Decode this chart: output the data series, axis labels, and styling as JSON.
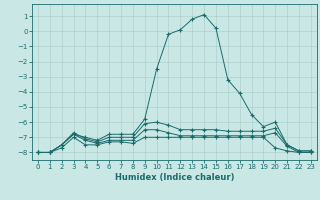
{
  "xlabel": "Humidex (Indice chaleur)",
  "ylabel": "",
  "background_color": "#c9e8e5",
  "grid_color": "#aed0cc",
  "line_color": "#1a6b6b",
  "xlim": [
    -0.5,
    23.5
  ],
  "ylim": [
    -8.5,
    1.8
  ],
  "yticks": [
    1,
    0,
    -1,
    -2,
    -3,
    -4,
    -5,
    -6,
    -7,
    -8
  ],
  "xticks": [
    0,
    1,
    2,
    3,
    4,
    5,
    6,
    7,
    8,
    9,
    10,
    11,
    12,
    13,
    14,
    15,
    16,
    17,
    18,
    19,
    20,
    21,
    22,
    23
  ],
  "curve1_x": [
    0,
    1,
    2,
    3,
    4,
    5,
    6,
    7,
    8,
    9,
    10,
    11,
    12,
    13,
    14,
    15,
    16,
    17,
    18,
    19,
    20,
    21,
    22,
    23
  ],
  "curve1_y": [
    -8.0,
    -8.0,
    -7.5,
    -6.8,
    -7.0,
    -7.2,
    -6.8,
    -6.8,
    -6.8,
    -5.8,
    -2.5,
    -0.2,
    0.1,
    0.8,
    1.1,
    0.2,
    -3.2,
    -4.1,
    -5.5,
    -6.3,
    -6.0,
    -7.5,
    -7.9,
    -7.9
  ],
  "curve2_x": [
    0,
    1,
    2,
    3,
    4,
    5,
    6,
    7,
    8,
    9,
    10,
    11,
    12,
    13,
    14,
    15,
    16,
    17,
    18,
    19,
    20,
    21,
    22,
    23
  ],
  "curve2_y": [
    -8.0,
    -8.0,
    -7.5,
    -6.7,
    -7.1,
    -7.3,
    -7.0,
    -7.0,
    -7.0,
    -6.1,
    -6.0,
    -6.2,
    -6.5,
    -6.5,
    -6.5,
    -6.5,
    -6.6,
    -6.6,
    -6.6,
    -6.6,
    -6.4,
    -7.5,
    -7.9,
    -7.9
  ],
  "curve3_x": [
    0,
    1,
    2,
    3,
    4,
    5,
    6,
    7,
    8,
    9,
    10,
    11,
    12,
    13,
    14,
    15,
    16,
    17,
    18,
    19,
    20,
    21,
    22,
    23
  ],
  "curve3_y": [
    -8.0,
    -8.0,
    -7.5,
    -6.8,
    -7.2,
    -7.4,
    -7.2,
    -7.2,
    -7.2,
    -6.5,
    -6.5,
    -6.7,
    -6.9,
    -6.9,
    -6.9,
    -6.9,
    -6.9,
    -6.9,
    -6.9,
    -6.9,
    -6.7,
    -7.6,
    -8.0,
    -8.0
  ],
  "curve4_x": [
    0,
    1,
    2,
    3,
    4,
    5,
    6,
    7,
    8,
    9,
    10,
    11,
    12,
    13,
    14,
    15,
    16,
    17,
    18,
    19,
    20,
    21,
    22,
    23
  ],
  "curve4_y": [
    -8.0,
    -8.0,
    -7.7,
    -7.0,
    -7.5,
    -7.5,
    -7.3,
    -7.3,
    -7.4,
    -7.0,
    -7.0,
    -7.0,
    -7.0,
    -7.0,
    -7.0,
    -7.0,
    -7.0,
    -7.0,
    -7.0,
    -7.0,
    -7.7,
    -7.9,
    -8.0,
    -8.0
  ],
  "tick_fontsize": 5,
  "label_fontsize": 6
}
